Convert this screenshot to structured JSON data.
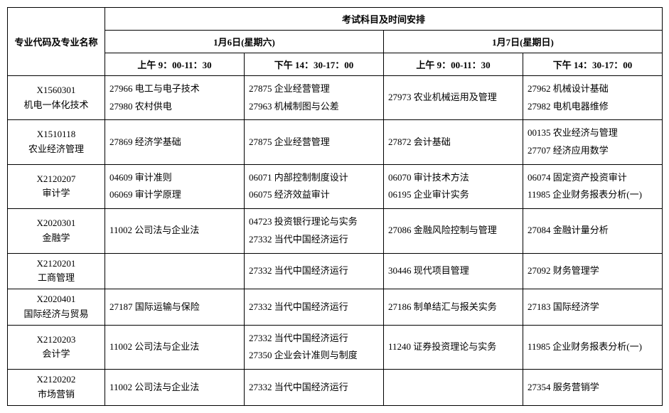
{
  "header": {
    "major_col": "专业代码及专业名称",
    "schedule_title": "考试科目及时间安排",
    "day1": "1月6日(星期六)",
    "day2": "1月7日(星期日)",
    "slot_am": "上午 9：00-11：30",
    "slot_pm": "下午 14：30-17：00"
  },
  "majors": [
    {
      "code": "X1560301",
      "name": "机电一体化技术",
      "slots": [
        [
          "27966 电工与电子技术",
          "27980 农村供电"
        ],
        [
          "27875 企业经营管理",
          "27963 机械制图与公差"
        ],
        [
          "27973 农业机械运用及管理"
        ],
        [
          "27962 机械设计基础",
          "27982 电机电器维修"
        ]
      ]
    },
    {
      "code": "X1510118",
      "name": "农业经济管理",
      "slots": [
        [
          "27869 经济学基础"
        ],
        [
          "27875 企业经营管理"
        ],
        [
          "27872 会计基础"
        ],
        [
          "00135 农业经济与管理",
          "27707 经济应用数学"
        ]
      ]
    },
    {
      "code": "X2120207",
      "name": "审计学",
      "slots": [
        [
          "04609 审计准则",
          "06069 审计学原理"
        ],
        [
          "06071 内部控制制度设计",
          "06075 经济效益审计"
        ],
        [
          "06070 审计技术方法",
          "06195 企业审计实务"
        ],
        [
          "06074 固定资产投资审计",
          "11985 企业财务报表分析(一)"
        ]
      ]
    },
    {
      "code": "X2020301",
      "name": "金融学",
      "slots": [
        [
          "11002 公司法与企业法"
        ],
        [
          "04723 投资银行理论与实务",
          "27332 当代中国经济运行"
        ],
        [
          "27086 金融风险控制与管理"
        ],
        [
          "27084 金融计量分析"
        ]
      ]
    },
    {
      "code": "X2120201",
      "name": "工商管理",
      "slots": [
        [],
        [
          "27332 当代中国经济运行"
        ],
        [
          "30446 现代项目管理"
        ],
        [
          "27092 财务管理学"
        ]
      ]
    },
    {
      "code": "X2020401",
      "name": "国际经济与贸易",
      "slots": [
        [
          "27187 国际运输与保险"
        ],
        [
          "27332 当代中国经济运行"
        ],
        [
          "27186 制单结汇与报关实务"
        ],
        [
          "27183 国际经济学"
        ]
      ]
    },
    {
      "code": "X2120203",
      "name": "会计学",
      "slots": [
        [
          "11002 公司法与企业法"
        ],
        [
          "27332 当代中国经济运行",
          "27350 企业会计准则与制度"
        ],
        [
          "11240 证券投资理论与实务"
        ],
        [
          "11985 企业财务报表分析(一)"
        ]
      ]
    },
    {
      "code": "X2120202",
      "name": "市场营销",
      "slots": [
        [
          "11002 公司法与企业法"
        ],
        [
          "27332 当代中国经济运行"
        ],
        [],
        [
          "27354 服务营销学"
        ]
      ]
    }
  ]
}
